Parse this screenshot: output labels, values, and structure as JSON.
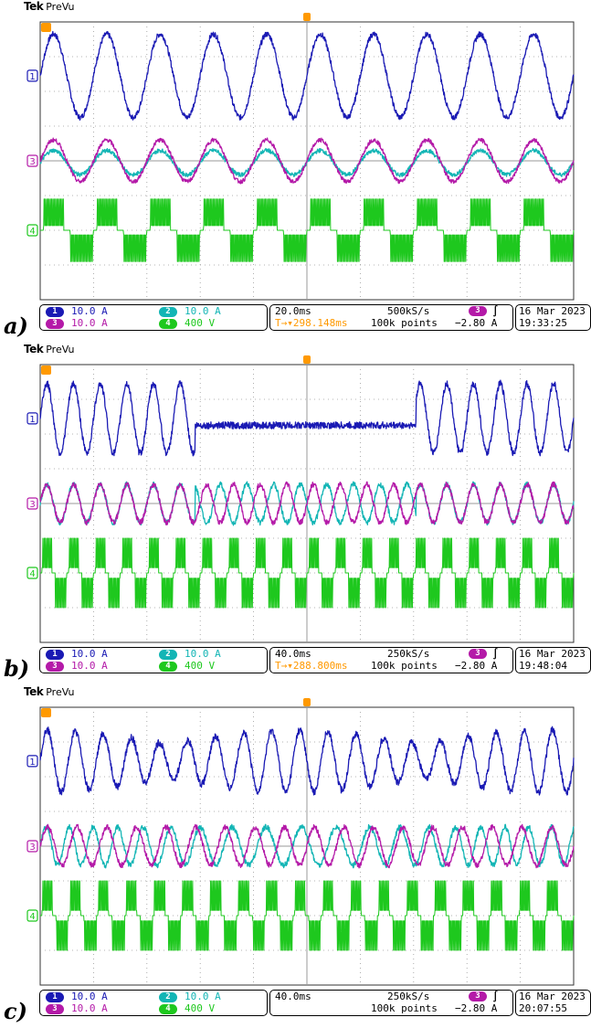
{
  "figure": {
    "panels": [
      {
        "label": "a)",
        "brand": "Tek",
        "mode": "PreVu",
        "readout": {
          "ch1": {
            "num": "1",
            "scale": "10.0 A"
          },
          "ch2": {
            "num": "2",
            "scale": "10.0 A"
          },
          "ch3": {
            "num": "3",
            "scale": "10.0 A"
          },
          "ch4": {
            "num": "4",
            "scale": "400 V"
          },
          "timebase": "20.0ms",
          "sample_rate": "500kS/s",
          "position": "298.148ms",
          "points": "100k points",
          "trigger_channel": "3",
          "trigger_slope": "∫",
          "trigger_level": "−2.80 A",
          "date": "16 Mar 2023",
          "time": "19:33:25"
        }
      },
      {
        "label": "b)",
        "brand": "Tek",
        "mode": "PreVu",
        "readout": {
          "ch1": {
            "num": "1",
            "scale": "10.0 A"
          },
          "ch2": {
            "num": "2",
            "scale": "10.0 A"
          },
          "ch3": {
            "num": "3",
            "scale": "10.0 A"
          },
          "ch4": {
            "num": "4",
            "scale": "400 V"
          },
          "timebase": "40.0ms",
          "sample_rate": "250kS/s",
          "position": "288.800ms",
          "points": "100k points",
          "trigger_channel": "3",
          "trigger_slope": "∫",
          "trigger_level": "−2.80 A",
          "date": "16 Mar 2023",
          "time": "19:48:04"
        }
      },
      {
        "label": "c)",
        "brand": "Tek",
        "mode": "PreVu",
        "readout": {
          "ch1": {
            "num": "1",
            "scale": "10.0 A"
          },
          "ch2": {
            "num": "2",
            "scale": "10.0 A"
          },
          "ch3": {
            "num": "3",
            "scale": "10.0 A"
          },
          "ch4": {
            "num": "4",
            "scale": "400 V"
          },
          "timebase": "40.0ms",
          "sample_rate": "250kS/s",
          "position": "",
          "points": "100k points",
          "trigger_channel": "3",
          "trigger_slope": "∫",
          "trigger_level": "−2.80 A",
          "date": "16 Mar 2023",
          "time": "20:07:55"
        }
      }
    ]
  },
  "colors": {
    "ch1": "#1a1ab4",
    "ch2": "#13b5b5",
    "ch3": "#b41aa8",
    "ch4": "#1ec81e",
    "trigger": "#ff9900",
    "grid": "#9a9a9a"
  },
  "chart_data": [
    {
      "type": "line",
      "title": "",
      "grid": true,
      "divisions": {
        "x": 10,
        "y": 8
      },
      "series": [
        {
          "name": "1",
          "shape": "sine",
          "cycles": 10,
          "amplitude_div": 1.2,
          "offset_div": 2.45,
          "noise": 0.08
        },
        {
          "name": "2",
          "shape": "sine",
          "cycles": 10,
          "amplitude_div": 0.35,
          "offset_div": -0.05,
          "noise": 0.06
        },
        {
          "name": "3",
          "shape": "sine",
          "cycles": 10,
          "amplitude_div": 0.6,
          "offset_div": 0.0,
          "noise": 0.06
        },
        {
          "name": "4",
          "shape": "pwm",
          "cycles": 10,
          "amplitude_div": 0.9,
          "offset_div": -2.0
        }
      ]
    },
    {
      "type": "line",
      "title": "",
      "grid": true,
      "divisions": {
        "x": 10,
        "y": 8
      },
      "series": [
        {
          "name": "1",
          "shape": "sine_gap",
          "cycles": 20,
          "amplitude_div": 1.0,
          "offset_div": 2.45,
          "noise": 0.1,
          "gap_start_div": 2.9,
          "gap_end_div": 7.05,
          "gap_offset_div": 2.25
        },
        {
          "name": "2",
          "shape": "sine_phase",
          "cycles": 20,
          "amplitude_div": 0.55,
          "offset_div": 0.0,
          "noise": 0.08,
          "phase_start_div": 2.9,
          "phase_end_div": 7.05
        },
        {
          "name": "3",
          "shape": "sine",
          "cycles": 20,
          "amplitude_div": 0.55,
          "offset_div": 0.0,
          "noise": 0.08
        },
        {
          "name": "4",
          "shape": "pwm",
          "cycles": 20,
          "amplitude_div": 1.0,
          "offset_div": -2.0
        }
      ]
    },
    {
      "type": "line",
      "title": "",
      "grid": true,
      "divisions": {
        "x": 10,
        "y": 8
      },
      "series": [
        {
          "name": "1",
          "shape": "sine_am",
          "cycles": 19,
          "amplitude_div": 0.9,
          "offset_div": 2.45,
          "noise": 0.1
        },
        {
          "name": "2",
          "shape": "sine_drift",
          "cycles": 19,
          "amplitude_div": 0.55,
          "offset_div": 0.0,
          "noise": 0.08
        },
        {
          "name": "3",
          "shape": "sine",
          "cycles": 18,
          "amplitude_div": 0.55,
          "offset_div": 0.0,
          "noise": 0.08
        },
        {
          "name": "4",
          "shape": "pwm",
          "cycles": 19,
          "amplitude_div": 1.0,
          "offset_div": -2.0
        }
      ]
    }
  ]
}
